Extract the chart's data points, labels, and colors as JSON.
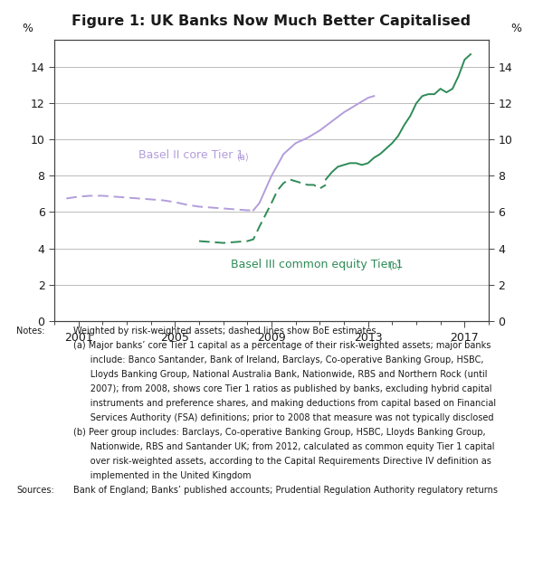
{
  "title": "Figure 1: UK Banks Now Much Better Capitalised",
  "xlim": [
    2000,
    2018
  ],
  "ylim": [
    0,
    15.5
  ],
  "xticks": [
    2001,
    2005,
    2009,
    2013,
    2017
  ],
  "yticks": [
    0,
    2,
    4,
    6,
    8,
    10,
    12,
    14
  ],
  "ylabel_left": "%",
  "ylabel_right": "%",
  "basel2_color": "#b39ddb",
  "basel3_color": "#2e8b57",
  "basel2_label": "Basel II core Tier 1",
  "basel2_superscript": "(a)",
  "basel3_label": "Basel III common equity Tier 1",
  "basel3_superscript": "(b)",
  "basel2_dashed_x": [
    2000.5,
    2001,
    2001.5,
    2002,
    2002.5,
    2003,
    2003.5,
    2004,
    2004.5,
    2005,
    2005.5,
    2006,
    2006.5,
    2007,
    2007.5,
    2008,
    2008.25
  ],
  "basel2_dashed_y": [
    6.75,
    6.85,
    6.9,
    6.9,
    6.85,
    6.8,
    6.75,
    6.7,
    6.65,
    6.55,
    6.4,
    6.3,
    6.25,
    6.2,
    6.15,
    6.1,
    6.1
  ],
  "basel2_solid_x": [
    2008.25,
    2008.5,
    2009,
    2009.5,
    2010,
    2010.5,
    2011,
    2011.5,
    2012,
    2012.5,
    2013,
    2013.25
  ],
  "basel2_solid_y": [
    6.1,
    6.5,
    8.0,
    9.2,
    9.8,
    10.1,
    10.5,
    11.0,
    11.5,
    11.9,
    12.3,
    12.4
  ],
  "basel3_dashed_x": [
    2006,
    2006.5,
    2007,
    2007.5,
    2008,
    2008.25,
    2008.5,
    2009,
    2009.25,
    2009.5,
    2009.75,
    2010,
    2010.25,
    2010.5,
    2010.75,
    2011,
    2011.25
  ],
  "basel3_dashed_y": [
    4.4,
    4.35,
    4.3,
    4.35,
    4.4,
    4.5,
    5.2,
    6.5,
    7.2,
    7.6,
    7.8,
    7.7,
    7.6,
    7.5,
    7.5,
    7.3,
    7.5
  ],
  "basel3_solid_x": [
    2011.25,
    2011.5,
    2011.75,
    2012,
    2012.25,
    2012.5,
    2012.75,
    2013,
    2013.25,
    2013.5,
    2013.75,
    2014,
    2014.25,
    2014.5,
    2014.75,
    2015,
    2015.25,
    2015.5,
    2015.75,
    2016,
    2016.25,
    2016.5,
    2016.75,
    2017,
    2017.25
  ],
  "basel3_solid_y": [
    7.8,
    8.2,
    8.5,
    8.6,
    8.7,
    8.7,
    8.6,
    8.7,
    9.0,
    9.2,
    9.5,
    9.8,
    10.2,
    10.8,
    11.3,
    12.0,
    12.4,
    12.5,
    12.5,
    12.8,
    12.6,
    12.8,
    13.5,
    14.4,
    14.7
  ],
  "background_color": "#ffffff",
  "grid_color": "#bbbbbb",
  "text_color": "#1a1a1a",
  "notes_lines": [
    [
      "Notes:",
      "Weighted by risk-weighted assets; dashed lines show BoE estimates"
    ],
    [
      "",
      "(a) Major banks’ core Tier 1 capital as a percentage of their risk-weighted assets; major banks"
    ],
    [
      "",
      "      include: Banco Santander, Bank of Ireland, Barclays, Co-operative Banking Group, HSBC,"
    ],
    [
      "",
      "      Lloyds Banking Group, National Australia Bank, Nationwide, RBS and Northern Rock (until"
    ],
    [
      "",
      "      2007); from 2008, shows core Tier 1 ratios as published by banks, excluding hybrid capital"
    ],
    [
      "",
      "      instruments and preference shares, and making deductions from capital based on Financial"
    ],
    [
      "",
      "      Services Authority (FSA) definitions; prior to 2008 that measure was not typically disclosed"
    ],
    [
      "",
      "(b) Peer group includes: Barclays, Co-operative Banking Group, HSBC, Lloyds Banking Group,"
    ],
    [
      "",
      "      Nationwide, RBS and Santander UK; from 2012, calculated as common equity Tier 1 capital"
    ],
    [
      "",
      "      over risk-weighted assets, according to the Capital Requirements Directive IV definition as"
    ],
    [
      "",
      "      implemented in the United Kingdom"
    ],
    [
      "Sources:",
      "Bank of England; Banks’ published accounts; Prudential Regulation Authority regulatory returns"
    ]
  ]
}
